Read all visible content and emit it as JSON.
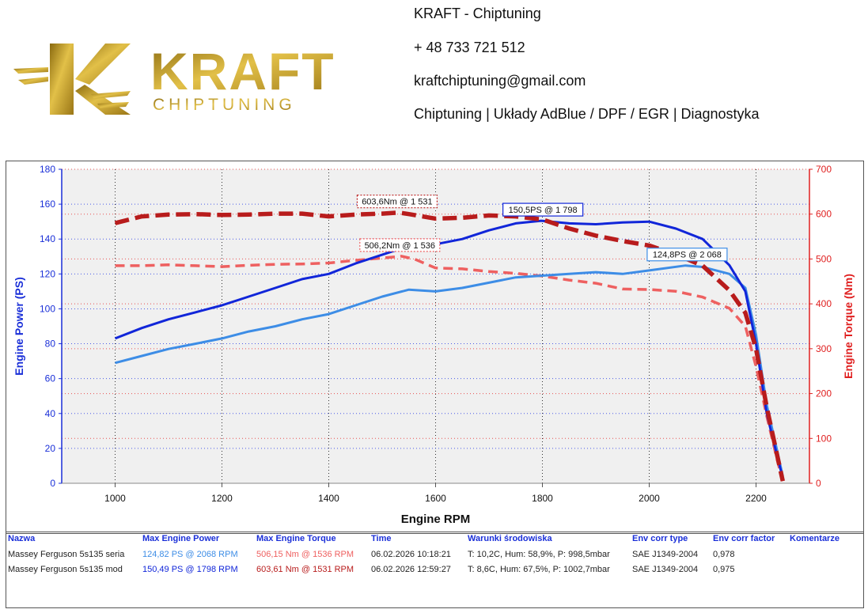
{
  "header": {
    "logo": {
      "main": "KRAFT",
      "sub": "CHIPTUNING"
    },
    "contact": [
      "KRAFT - Chiptuning",
      "+ 48 733 721 512",
      "kraftchiptuning@gmail.com",
      "Chiptuning | Układy AdBlue / DPF / EGR | Diagnostyka"
    ]
  },
  "colors": {
    "power_mod": "#1126d9",
    "power_stock": "#3d8de6",
    "torque_mod": "#b81c1c",
    "torque_stock": "#ee6060",
    "axis_left": "#1a2fd8",
    "axis_right": "#e02020",
    "plot_bg": "#f0f0f0"
  },
  "chart_data": {
    "type": "line",
    "xlabel": "Engine RPM",
    "ylabel_left": "Engine Power (PS)",
    "ylabel_right": "Engine Torque (Nm)",
    "xlim": [
      900,
      2300
    ],
    "ylim_left": [
      0,
      180
    ],
    "ylim_right": [
      0,
      700
    ],
    "xticks": [
      1000,
      1200,
      1400,
      1600,
      1800,
      2000,
      2200
    ],
    "yticks_left": [
      0,
      20,
      40,
      60,
      80,
      100,
      120,
      140,
      160,
      180
    ],
    "yticks_right": [
      0,
      100,
      200,
      300,
      400,
      500,
      600,
      700
    ],
    "series": [
      {
        "name": "Massey Ferguson 5s135 mod power",
        "axis": "left",
        "style": "solid",
        "color_key": "power_mod",
        "x": [
          1000,
          1050,
          1100,
          1150,
          1200,
          1250,
          1300,
          1350,
          1400,
          1450,
          1500,
          1550,
          1600,
          1650,
          1700,
          1750,
          1798,
          1850,
          1900,
          1950,
          2000,
          2050,
          2100,
          2150,
          2180,
          2200,
          2220,
          2240,
          2250
        ],
        "y": [
          83,
          89,
          94,
          98,
          102,
          107,
          112,
          117,
          120,
          126,
          131,
          136,
          137,
          140,
          145,
          149,
          150.5,
          149,
          148.5,
          149.5,
          150,
          146,
          140,
          125,
          110,
          80,
          40,
          15,
          3
        ]
      },
      {
        "name": "Massey Ferguson 5s135 seria power",
        "axis": "left",
        "style": "solid",
        "color_key": "power_stock",
        "x": [
          1000,
          1050,
          1100,
          1150,
          1200,
          1250,
          1300,
          1350,
          1400,
          1450,
          1500,
          1550,
          1600,
          1650,
          1700,
          1750,
          1800,
          1850,
          1900,
          1950,
          2000,
          2068,
          2100,
          2150,
          2180,
          2200,
          2220,
          2240,
          2250
        ],
        "y": [
          69,
          73,
          77,
          80,
          83,
          87,
          90,
          94,
          97,
          102,
          107,
          111,
          110,
          112,
          115,
          118,
          119,
          120,
          121,
          120,
          122,
          124.8,
          124,
          120,
          112,
          85,
          45,
          18,
          4
        ]
      },
      {
        "name": "Massey Ferguson 5s135 mod torque",
        "axis": "right",
        "style": "dash-thick",
        "color_key": "torque_mod",
        "x": [
          1000,
          1050,
          1100,
          1150,
          1200,
          1250,
          1300,
          1350,
          1400,
          1450,
          1500,
          1531,
          1550,
          1600,
          1650,
          1700,
          1750,
          1800,
          1850,
          1900,
          1950,
          2000,
          2050,
          2100,
          2150,
          2180,
          2200,
          2220,
          2240,
          2250
        ],
        "y": [
          580,
          595,
          599,
          600,
          598,
          599,
          601,
          601,
          595,
          599,
          601,
          603.6,
          600,
          590,
          592,
          597,
          595,
          588,
          568,
          552,
          540,
          530,
          510,
          485,
          430,
          380,
          300,
          170,
          60,
          5
        ]
      },
      {
        "name": "Massey Ferguson 5s135 seria torque",
        "axis": "right",
        "style": "dash",
        "color_key": "torque_stock",
        "x": [
          1000,
          1050,
          1100,
          1150,
          1200,
          1250,
          1300,
          1350,
          1400,
          1450,
          1500,
          1536,
          1560,
          1600,
          1650,
          1700,
          1750,
          1800,
          1850,
          1900,
          1950,
          2000,
          2050,
          2100,
          2150,
          2180,
          2200,
          2220,
          2240,
          2250
        ],
        "y": [
          485,
          485,
          487,
          485,
          483,
          486,
          488,
          489,
          491,
          497,
          502,
          506.2,
          500,
          480,
          478,
          472,
          468,
          462,
          453,
          446,
          433,
          432,
          428,
          415,
          390,
          350,
          260,
          150,
          50,
          5
        ]
      }
    ],
    "annotations": [
      {
        "text": "603,6Nm @ 1 531",
        "x": 1531,
        "y": 603.6,
        "axis": "right",
        "color_key": "torque_mod"
      },
      {
        "text": "506,2Nm @ 1 536",
        "x": 1536,
        "y": 506.2,
        "axis": "right",
        "color_key": "torque_stock"
      },
      {
        "text": "150,5PS @ 1 798",
        "x": 1798,
        "y": 150.5,
        "axis": "left",
        "color_key": "power_mod"
      },
      {
        "text": "124,8PS @ 2 068",
        "x": 2068,
        "y": 124.8,
        "axis": "left",
        "color_key": "power_stock"
      }
    ]
  },
  "results": {
    "headers": [
      "Nazwa",
      "Max Engine Power",
      "Max Engine Torque",
      "Time",
      "Warunki środowiska",
      "Env corr type",
      "Env corr factor",
      "Komentarze"
    ],
    "rows": [
      [
        "Massey Ferguson 5s135 seria",
        "124,82 PS @ 2068 RPM",
        "506,15 Nm @ 1536 RPM",
        "06.02.2026 10:18:21",
        "T: 10,2C, Hum: 58,9%, P: 998,5mbar",
        "SAE J1349-2004",
        "0,978",
        ""
      ],
      [
        "Massey Ferguson 5s135 mod",
        "150,49 PS @ 1798 RPM",
        "603,61 Nm @ 1531 RPM",
        "06.02.2026 12:59:27",
        "T: 8,6C, Hum: 67,5%, P: 1002,7mbar",
        "SAE J1349-2004",
        "0,975",
        ""
      ]
    ],
    "row_colors": [
      [
        "#222",
        "#3d8de6",
        "#ee6060",
        "#222",
        "#222",
        "#222",
        "#222",
        "#222"
      ],
      [
        "#222",
        "#1126d9",
        "#b81c1c",
        "#222",
        "#222",
        "#222",
        "#222",
        "#222"
      ]
    ]
  }
}
